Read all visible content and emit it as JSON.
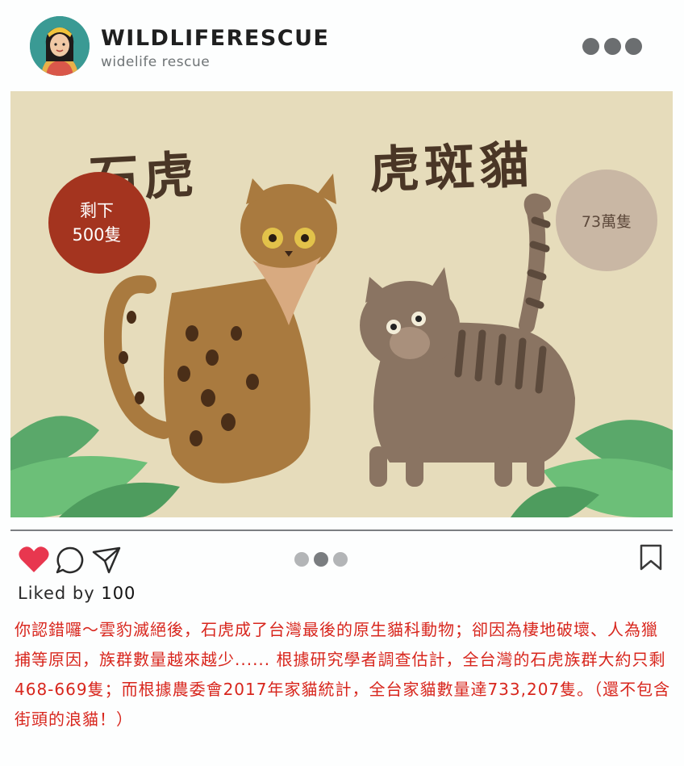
{
  "header": {
    "username": "WILDLIFERESCUE",
    "subtitle": "widelife rescue",
    "avatar_icon": "avatar-girl-icon",
    "more_icon": "more-dots-icon"
  },
  "post_image": {
    "title_left": "石虎",
    "title_right": "虎斑貓",
    "badge_left_line1": "剩下",
    "badge_left_line2": "500隻",
    "badge_right": "73萬隻",
    "colors": {
      "background": "#e6dcbb",
      "badge_left": "#a4341f",
      "badge_right": "#c9b7a4",
      "leopard_cat": "#a97a3f",
      "tabby_cat": "#8a7462",
      "leaves": "#5aa86a"
    }
  },
  "actions": {
    "like_icon": "heart-icon",
    "comment_icon": "comment-bubble-icon",
    "share_icon": "paper-plane-icon",
    "save_icon": "bookmark-icon",
    "carousel_dots": 3,
    "carousel_active_index": 1,
    "like_color": "#e8374f"
  },
  "likes": {
    "prefix": "Liked by",
    "count": "100"
  },
  "caption": {
    "text": "你認錯囉～雲豹滅絕後，石虎成了台灣最後的原生貓科動物；卻因為棲地破壞、人為獵捕等原因，族群數量越來越少...... 根據研究學者調查估計，全台灣的石虎族群大約只剩468-669隻；而根據農委會2017年家貓統計，全台家貓數量達733,207隻。（還不包含街頭的浪貓！）",
    "color": "#d8261d"
  }
}
